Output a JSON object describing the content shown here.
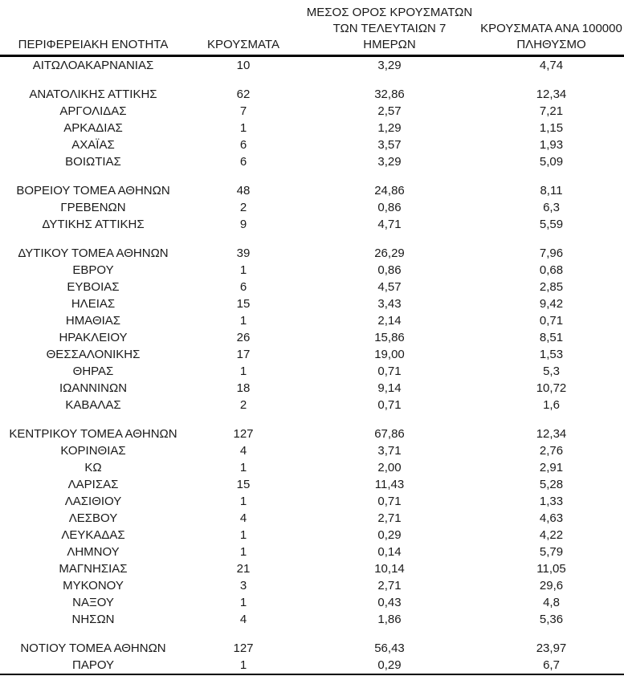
{
  "colors": {
    "background": "#ffffff",
    "text": "#1a1a1a",
    "rule": "#000000"
  },
  "table": {
    "columns": [
      {
        "key": "region",
        "label": "ΠΕΡΙΦΕΡΕΙΑΚΗ ΕΝΟΤΗΤΑ"
      },
      {
        "key": "cases",
        "label": "ΚΡΟΥΣΜΑΤΑ"
      },
      {
        "key": "avg7",
        "label": "ΜΕΣΟΣ ΟΡΟΣ ΚΡΟΥΣΜΑΤΩΝ\nΤΩΝ ΤΕΛΕΥΤΑΙΩΝ 7\nΗΜΕΡΩΝ"
      },
      {
        "key": "per100k",
        "label": "ΚΡΟΥΣΜΑΤΑ ΑΝΑ 100000\nΠΛΗΘΥΣΜΟ"
      }
    ],
    "sections": [
      {
        "rows": [
          [
            "ΑΙΤΩΛΟΑΚΑΡΝΑΝΙΑΣ",
            "10",
            "3,29",
            "4,74"
          ]
        ]
      },
      {
        "rows": [
          [
            "ΑΝΑΤΟΛΙΚΗΣ ΑΤΤΙΚΗΣ",
            "62",
            "32,86",
            "12,34"
          ],
          [
            "ΑΡΓΟΛΙΔΑΣ",
            "7",
            "2,57",
            "7,21"
          ],
          [
            "ΑΡΚΑΔΙΑΣ",
            "1",
            "1,29",
            "1,15"
          ],
          [
            "ΑΧΑΪΑΣ",
            "6",
            "3,57",
            "1,93"
          ],
          [
            "ΒΟΙΩΤΙΑΣ",
            "6",
            "3,29",
            "5,09"
          ]
        ]
      },
      {
        "rows": [
          [
            "ΒΟΡΕΙΟΥ ΤΟΜΕΑ ΑΘΗΝΩΝ",
            "48",
            "24,86",
            "8,11"
          ],
          [
            "ΓΡΕΒΕΝΩΝ",
            "2",
            "0,86",
            "6,3"
          ],
          [
            "ΔΥΤΙΚΗΣ ΑΤΤΙΚΗΣ",
            "9",
            "4,71",
            "5,59"
          ]
        ]
      },
      {
        "rows": [
          [
            "ΔΥΤΙΚΟΥ ΤΟΜΕΑ ΑΘΗΝΩΝ",
            "39",
            "26,29",
            "7,96"
          ],
          [
            "ΕΒΡΟΥ",
            "1",
            "0,86",
            "0,68"
          ],
          [
            "ΕΥΒΟΙΑΣ",
            "6",
            "4,57",
            "2,85"
          ],
          [
            "ΗΛΕΙΑΣ",
            "15",
            "3,43",
            "9,42"
          ],
          [
            "ΗΜΑΘΙΑΣ",
            "1",
            "2,14",
            "0,71"
          ],
          [
            "ΗΡΑΚΛΕΙΟΥ",
            "26",
            "15,86",
            "8,51"
          ],
          [
            "ΘΕΣΣΑΛΟΝΙΚΗΣ",
            "17",
            "19,00",
            "1,53"
          ],
          [
            "ΘΗΡΑΣ",
            "1",
            "0,71",
            "5,3"
          ],
          [
            "ΙΩΑΝΝΙΝΩΝ",
            "18",
            "9,14",
            "10,72"
          ],
          [
            "ΚΑΒΑΛΑΣ",
            "2",
            "0,71",
            "1,6"
          ]
        ]
      },
      {
        "rows": [
          [
            "ΚΕΝΤΡΙΚΟΥ ΤΟΜΕΑ ΑΘΗΝΩΝ",
            "127",
            "67,86",
            "12,34"
          ],
          [
            "ΚΟΡΙΝΘΙΑΣ",
            "4",
            "3,71",
            "2,76"
          ],
          [
            "ΚΩ",
            "1",
            "2,00",
            "2,91"
          ],
          [
            "ΛΑΡΙΣΑΣ",
            "15",
            "11,43",
            "5,28"
          ],
          [
            "ΛΑΣΙΘΙΟΥ",
            "1",
            "0,71",
            "1,33"
          ],
          [
            "ΛΕΣΒΟΥ",
            "4",
            "2,71",
            "4,63"
          ],
          [
            "ΛΕΥΚΑΔΑΣ",
            "1",
            "0,29",
            "4,22"
          ],
          [
            "ΛΗΜΝΟΥ",
            "1",
            "0,14",
            "5,79"
          ],
          [
            "ΜΑΓΝΗΣΙΑΣ",
            "21",
            "10,14",
            "11,05"
          ],
          [
            "ΜΥΚΟΝΟΥ",
            "3",
            "2,71",
            "29,6"
          ],
          [
            "ΝΑΞΟΥ",
            "1",
            "0,43",
            "4,8"
          ],
          [
            "ΝΗΣΩΝ",
            "4",
            "1,86",
            "5,36"
          ]
        ]
      },
      {
        "rows": [
          [
            "ΝΟΤΙΟΥ ΤΟΜΕΑ ΑΘΗΝΩΝ",
            "127",
            "56,43",
            "23,97"
          ],
          [
            "ΠΑΡΟΥ",
            "1",
            "0,29",
            "6,7"
          ]
        ]
      }
    ]
  }
}
